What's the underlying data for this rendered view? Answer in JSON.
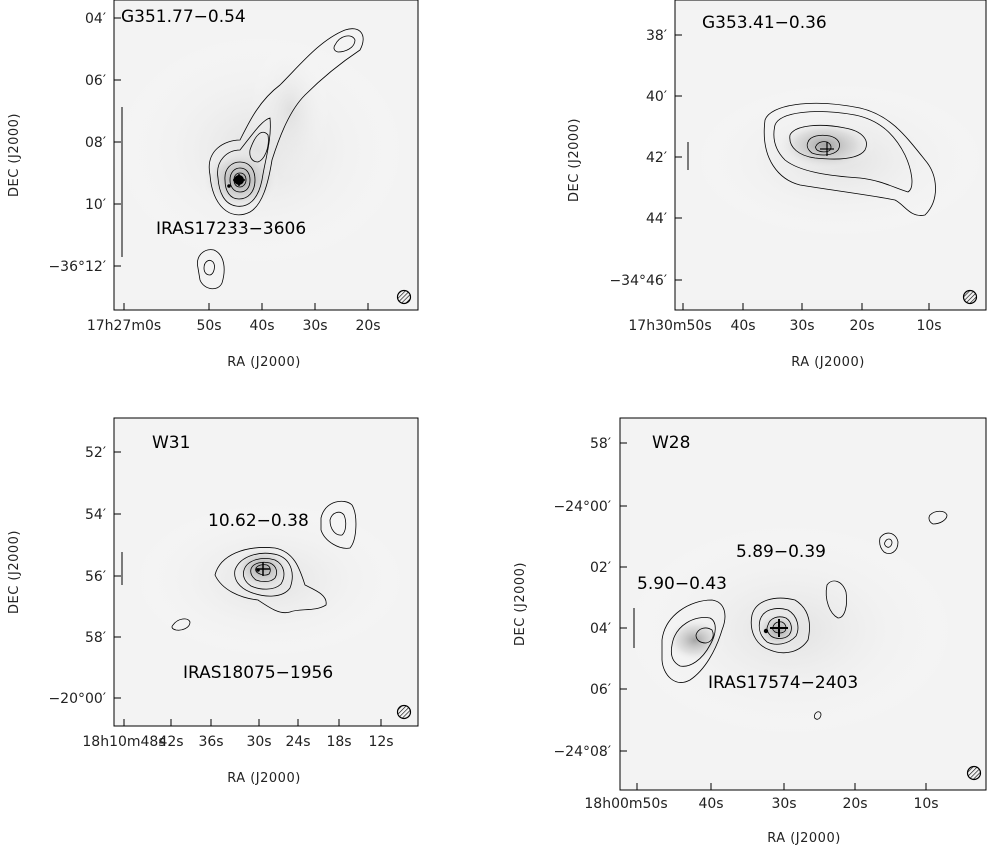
{
  "chart_data": [
    {
      "type": "contour-map",
      "title": "G351.77−0.54",
      "xlabel": "RA (J2000)",
      "ylabel": "DEC (J2000)",
      "x_ticks": [
        "17h27m0s",
        "50s",
        "40s",
        "30s",
        "20s"
      ],
      "y_ticks": [
        "04′",
        "06′",
        "08′",
        "10′",
        "−36°12′"
      ],
      "annotations": [
        "IRAS17233−3606"
      ],
      "markers": [
        {
          "type": "plus"
        },
        {
          "type": "dot"
        }
      ],
      "beam": "hatched circle",
      "scale_bar": true
    },
    {
      "type": "contour-map",
      "title": "G353.41−0.36",
      "xlabel": "RA (J2000)",
      "ylabel": "DEC (J2000)",
      "x_ticks": [
        "17h30m50s",
        "40s",
        "30s",
        "20s",
        "10s"
      ],
      "y_ticks": [
        "38′",
        "40′",
        "42′",
        "44′",
        "−34°46′"
      ],
      "annotations": [],
      "markers": [
        {
          "type": "plus"
        }
      ],
      "beam": "hatched circle",
      "scale_bar": true
    },
    {
      "type": "contour-map",
      "title": "W31",
      "xlabel": "RA (J2000)",
      "ylabel": "DEC (J2000)",
      "x_ticks": [
        "18h10m48s",
        "42s",
        "36s",
        "30s",
        "24s",
        "18s",
        "12s"
      ],
      "y_ticks": [
        "52′",
        "54′",
        "56′",
        "58′",
        "−20°00′"
      ],
      "annotations": [
        "10.62−0.38",
        "IRAS18075−1956"
      ],
      "markers": [
        {
          "type": "plus"
        },
        {
          "type": "dot"
        }
      ],
      "beam": "hatched circle",
      "scale_bar": true
    },
    {
      "type": "contour-map",
      "title": "W28",
      "xlabel": "RA (J2000)",
      "ylabel": "DEC (J2000)",
      "x_ticks": [
        "18h00m50s",
        "40s",
        "30s",
        "20s",
        "10s"
      ],
      "y_ticks": [
        "58′",
        "−24°00′",
        "02′",
        "04′",
        "06′",
        "−24°08′"
      ],
      "annotations": [
        "5.89−0.39",
        "5.90−0.43",
        "IRAS17574−2403"
      ],
      "markers": [
        {
          "type": "plus"
        },
        {
          "type": "dot"
        }
      ],
      "beam": "hatched circle",
      "scale_bar": true
    }
  ]
}
